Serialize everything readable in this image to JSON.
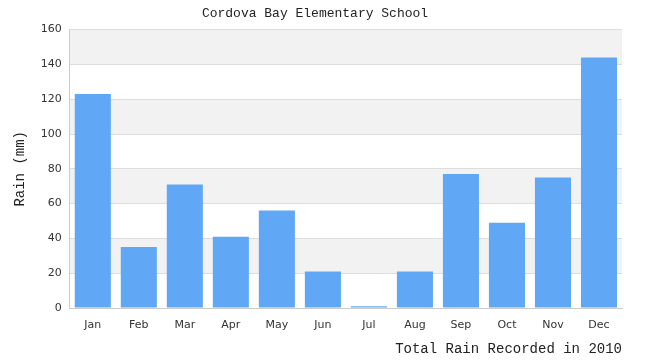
{
  "chart_data": {
    "type": "bar",
    "title": "Cordova Bay Elementary School",
    "x_label": "Total Rain Recorded in 2010",
    "y_label": "Rain (mm)",
    "categories": [
      "Jan",
      "Feb",
      "Mar",
      "Apr",
      "May",
      "Jun",
      "Jul",
      "Aug",
      "Sep",
      "Oct",
      "Nov",
      "Dec"
    ],
    "values": [
      123,
      35,
      71,
      41,
      56,
      21,
      1,
      21,
      77,
      49,
      75,
      144
    ],
    "color": "#60a8f5",
    "ylim": [
      0,
      160
    ],
    "yticks": [
      0,
      20,
      40,
      60,
      80,
      100,
      120,
      140,
      160
    ],
    "grid": true
  }
}
